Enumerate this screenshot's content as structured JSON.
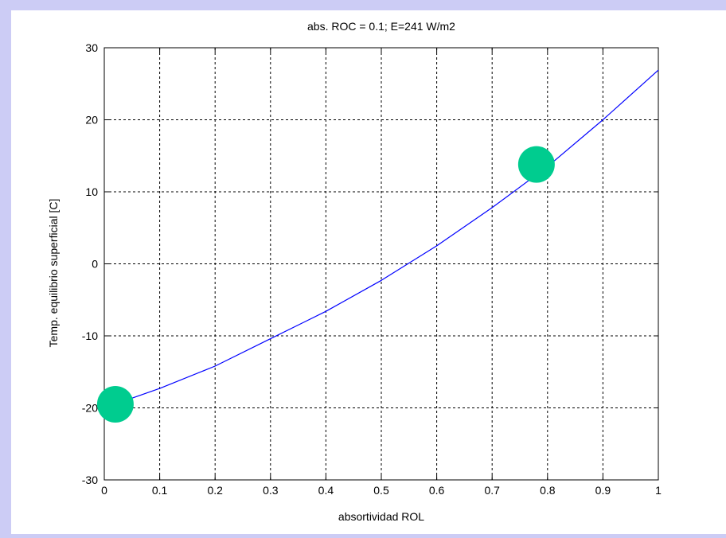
{
  "chart_data": {
    "type": "line",
    "title": "abs. ROC = 0.1; E=241 W/m2",
    "xlabel": "absortividad ROL",
    "ylabel": "Temp. equilibrio superficial [C]",
    "xlim": [
      0,
      1
    ],
    "ylim": [
      -30,
      30
    ],
    "xticks": [
      0,
      0.1,
      0.2,
      0.3,
      0.4,
      0.5,
      0.6,
      0.7,
      0.8,
      0.9,
      1
    ],
    "yticks": [
      -30,
      -20,
      -10,
      0,
      10,
      20,
      30
    ],
    "xtick_labels": [
      "0",
      "0.1",
      "0.2",
      "0.3",
      "0.4",
      "0.5",
      "0.6",
      "0.7",
      "0.8",
      "0.9",
      "1"
    ],
    "ytick_labels": [
      "-30",
      "-20",
      "-10",
      "0",
      "10",
      "20",
      "30"
    ],
    "grid": true,
    "series": [
      {
        "color": "#0000ff",
        "x": [
          0,
          0.1,
          0.2,
          0.3,
          0.4,
          0.5,
          0.6,
          0.7,
          0.8,
          0.9,
          1.0
        ],
        "y": [
          -20.0,
          -17.3,
          -14.2,
          -10.4,
          -6.6,
          -2.3,
          2.5,
          7.8,
          13.5,
          20.0,
          26.9
        ]
      }
    ],
    "markers": [
      {
        "x": 0.02,
        "y": -19.5,
        "color": "#00cc8f"
      },
      {
        "x": 0.78,
        "y": 13.8,
        "color": "#00cc8f"
      }
    ]
  }
}
